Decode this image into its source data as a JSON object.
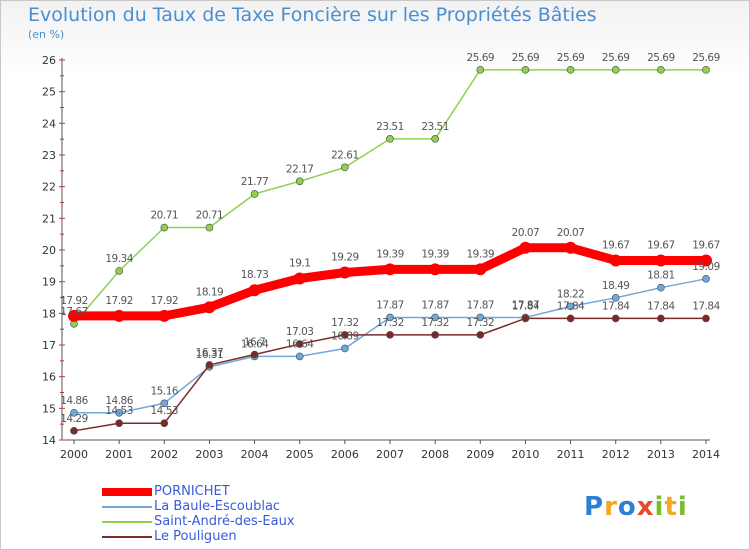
{
  "title": "Evolution du Taux de Taxe Foncière sur les Propriétés Bâties",
  "subtitle": "(en %)",
  "logo": "Proxiti",
  "chart_data": {
    "type": "line",
    "x": [
      "2000",
      "2001",
      "2002",
      "2003",
      "2004",
      "2005",
      "2006",
      "2007",
      "2008",
      "2009",
      "2010",
      "2011",
      "2012",
      "2013",
      "2014"
    ],
    "ylim": [
      14,
      26
    ],
    "yticks": [
      14,
      15,
      16,
      17,
      18,
      19,
      20,
      21,
      22,
      23,
      24,
      25,
      26
    ],
    "grid": false,
    "legend_position": "bottom-left",
    "series": [
      {
        "name": "PORNICHET",
        "color": "#ff0000",
        "values": [
          17.92,
          17.92,
          17.92,
          18.19,
          18.73,
          19.1,
          19.29,
          19.39,
          19.39,
          19.39,
          20.07,
          20.07,
          19.67,
          19.67,
          19.67
        ],
        "labels": [
          "17.92",
          "17.92",
          "17.92",
          "18.19",
          "18.73",
          "19.1",
          "19.29",
          "19.39",
          "19.39",
          "19.39",
          "20.07",
          "20.07",
          "19.67",
          "19.67",
          "19.67"
        ]
      },
      {
        "name": "La Baule-Escoublac",
        "color": "#6fa8dc",
        "values": [
          14.86,
          14.86,
          15.16,
          16.31,
          16.64,
          16.64,
          16.89,
          17.87,
          17.87,
          17.87,
          17.87,
          18.22,
          18.49,
          18.81,
          19.09
        ],
        "labels": [
          "14.86",
          "14.86",
          "15.16",
          "16.31",
          "16.64",
          "16.64",
          "16.89",
          "17.87",
          "17.87",
          "17.87",
          "17.87",
          "18.22",
          "18.49",
          "18.81",
          "19.09"
        ]
      },
      {
        "name": "Saint-André-des-Eaux",
        "color": "#8fd14f",
        "values": [
          17.67,
          19.34,
          20.71,
          20.71,
          21.77,
          22.17,
          22.61,
          23.51,
          23.51,
          25.69,
          25.69,
          25.69,
          25.69,
          25.69,
          25.69
        ],
        "labels": [
          "17.67",
          "19.34",
          "20.71",
          "20.71",
          "21.77",
          "22.17",
          "22.61",
          "23.51",
          "23.51",
          "25.69",
          "25.69",
          "25.69",
          "25.69",
          "25.69",
          "25.69"
        ]
      },
      {
        "name": "Le Pouliguen",
        "color": "#7b2a2a",
        "values": [
          14.29,
          14.53,
          14.53,
          16.37,
          16.7,
          17.03,
          17.32,
          17.32,
          17.32,
          17.32,
          17.84,
          17.84,
          17.84,
          17.84,
          17.84
        ],
        "labels": [
          "14.29",
          "14.53",
          "14.53",
          "16.37",
          "16.7",
          "17.03",
          "17.32",
          "17.32",
          "17.32",
          "17.32",
          "17.84",
          "17.84",
          "17.84",
          "17.84",
          "17.84"
        ]
      }
    ]
  }
}
